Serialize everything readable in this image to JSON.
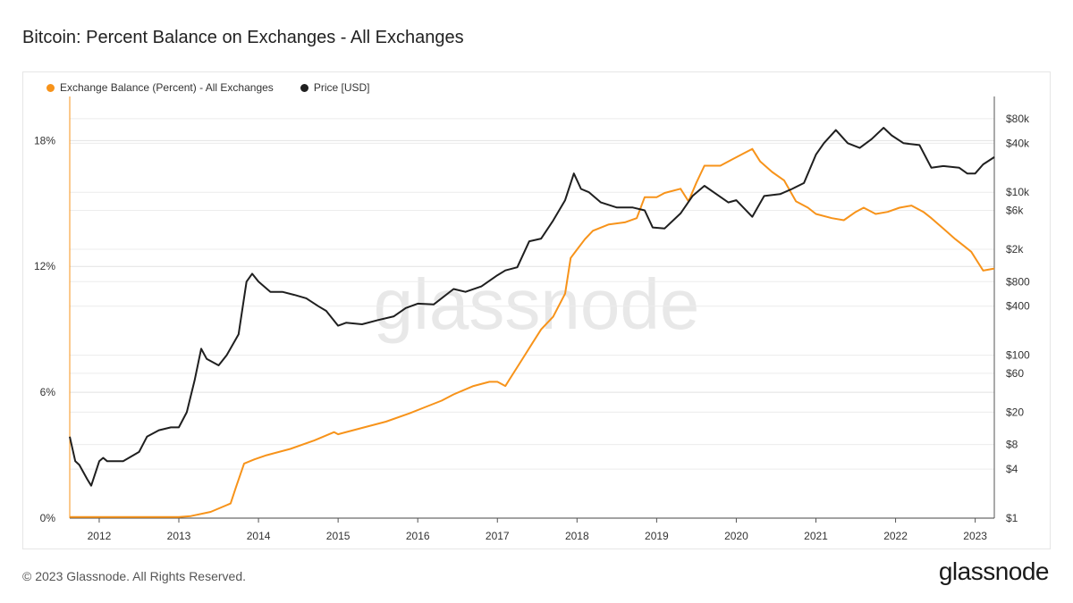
{
  "header": {
    "title": "Bitcoin: Percent Balance on Exchanges - All Exchanges"
  },
  "footer": {
    "copyright": "© 2023 Glassnode. All Rights Reserved.",
    "logo": "glassnode"
  },
  "watermark": "glassnode",
  "colors": {
    "balance": "#f7931a",
    "price": "#1f1f1f",
    "grid": "#ececec"
  },
  "chart_data": {
    "type": "line",
    "title": "Bitcoin: Percent Balance on Exchanges - All Exchanges",
    "x_range": [
      2011.63,
      2023.24
    ],
    "x_ticks": [
      "2012",
      "2013",
      "2014",
      "2015",
      "2016",
      "2017",
      "2018",
      "2019",
      "2020",
      "2021",
      "2022",
      "2023"
    ],
    "x_tick_values": [
      2012,
      2013,
      2014,
      2015,
      2016,
      2017,
      2018,
      2019,
      2020,
      2021,
      2022,
      2023
    ],
    "y_left": {
      "ticks": [
        "0%",
        "6%",
        "12%",
        "18%"
      ],
      "values": [
        0,
        6,
        12,
        18
      ],
      "range": [
        0,
        20.1
      ]
    },
    "y_right": {
      "scale": "log",
      "ticks": [
        "$1",
        "$4",
        "$8",
        "$20",
        "$60",
        "$100",
        "$400",
        "$800",
        "$2k",
        "$6k",
        "$10k",
        "$40k",
        "$80k"
      ],
      "values": [
        1,
        4,
        8,
        20,
        60,
        100,
        400,
        800,
        2000,
        6000,
        10000,
        40000,
        80000
      ],
      "range": [
        1,
        150000
      ]
    },
    "legend_position": "top-left",
    "series": [
      {
        "name": "Exchange Balance (Percent) - All Exchanges",
        "axis": "left",
        "x": [
          2011.63,
          2012.0,
          2012.5,
          2013.0,
          2013.15,
          2013.4,
          2013.65,
          2013.72,
          2013.82,
          2013.95,
          2014.1,
          2014.4,
          2014.7,
          2014.95,
          2015.0,
          2015.3,
          2015.6,
          2015.9,
          2016.1,
          2016.3,
          2016.45,
          2016.7,
          2016.9,
          2017.0,
          2017.1,
          2017.15,
          2017.3,
          2017.45,
          2017.55,
          2017.7,
          2017.85,
          2017.92,
          2018.0,
          2018.1,
          2018.2,
          2018.4,
          2018.6,
          2018.75,
          2018.85,
          2019.0,
          2019.1,
          2019.3,
          2019.4,
          2019.5,
          2019.6,
          2019.8,
          2019.95,
          2020.1,
          2020.2,
          2020.3,
          2020.45,
          2020.6,
          2020.75,
          2020.9,
          2021.0,
          2021.2,
          2021.35,
          2021.5,
          2021.6,
          2021.75,
          2021.9,
          2022.05,
          2022.2,
          2022.35,
          2022.45,
          2022.6,
          2022.75,
          2022.85,
          2022.95,
          2023.1,
          2023.24
        ],
        "values": [
          0.05,
          0.05,
          0.05,
          0.05,
          0.1,
          0.3,
          0.7,
          1.5,
          2.6,
          2.8,
          3.0,
          3.3,
          3.7,
          4.1,
          4.0,
          4.3,
          4.6,
          5.0,
          5.3,
          5.6,
          5.9,
          6.3,
          6.5,
          6.5,
          6.3,
          6.6,
          7.5,
          8.4,
          9.0,
          9.6,
          10.7,
          12.4,
          12.8,
          13.3,
          13.7,
          14.0,
          14.1,
          14.3,
          15.3,
          15.3,
          15.5,
          15.7,
          15.1,
          16.0,
          16.8,
          16.8,
          17.1,
          17.4,
          17.6,
          17.0,
          16.5,
          16.1,
          15.1,
          14.8,
          14.5,
          14.3,
          14.2,
          14.6,
          14.8,
          14.5,
          14.6,
          14.8,
          14.9,
          14.6,
          14.3,
          13.8,
          13.3,
          13.0,
          12.7,
          11.8,
          11.9
        ]
      },
      {
        "name": "Price [USD]",
        "axis": "right",
        "x": [
          2011.63,
          2011.7,
          2011.75,
          2011.85,
          2011.9,
          2012.0,
          2012.05,
          2012.1,
          2012.3,
          2012.5,
          2012.6,
          2012.75,
          2012.9,
          2013.0,
          2013.1,
          2013.2,
          2013.28,
          2013.35,
          2013.5,
          2013.6,
          2013.75,
          2013.85,
          2013.92,
          2014.0,
          2014.15,
          2014.3,
          2014.45,
          2014.6,
          2014.75,
          2014.85,
          2015.0,
          2015.1,
          2015.3,
          2015.5,
          2015.7,
          2015.85,
          2016.0,
          2016.2,
          2016.45,
          2016.6,
          2016.8,
          2017.0,
          2017.1,
          2017.25,
          2017.4,
          2017.55,
          2017.7,
          2017.85,
          2017.96,
          2018.05,
          2018.15,
          2018.3,
          2018.5,
          2018.7,
          2018.85,
          2018.95,
          2019.1,
          2019.3,
          2019.45,
          2019.6,
          2019.75,
          2019.9,
          2020.0,
          2020.2,
          2020.35,
          2020.55,
          2020.7,
          2020.85,
          2021.0,
          2021.1,
          2021.25,
          2021.4,
          2021.55,
          2021.7,
          2021.85,
          2021.95,
          2022.1,
          2022.3,
          2022.45,
          2022.6,
          2022.8,
          2022.9,
          2023.0,
          2023.1,
          2023.24
        ],
        "values": [
          10,
          5,
          4.5,
          3,
          2.5,
          5,
          5.5,
          5,
          5,
          6.5,
          10,
          12,
          13,
          13,
          20,
          50,
          120,
          90,
          75,
          100,
          180,
          800,
          1000,
          800,
          600,
          600,
          550,
          500,
          400,
          350,
          230,
          250,
          240,
          270,
          300,
          380,
          430,
          420,
          650,
          600,
          700,
          960,
          1100,
          1200,
          2500,
          2700,
          4500,
          8000,
          17000,
          11000,
          10000,
          7500,
          6500,
          6500,
          6000,
          3700,
          3600,
          5500,
          9000,
          12000,
          9500,
          7500,
          8000,
          5000,
          9000,
          9500,
          11000,
          13000,
          29000,
          40000,
          58000,
          40000,
          35000,
          45000,
          62000,
          50000,
          40000,
          38000,
          20000,
          21000,
          20000,
          17000,
          17000,
          22000,
          27000
        ]
      }
    ]
  }
}
